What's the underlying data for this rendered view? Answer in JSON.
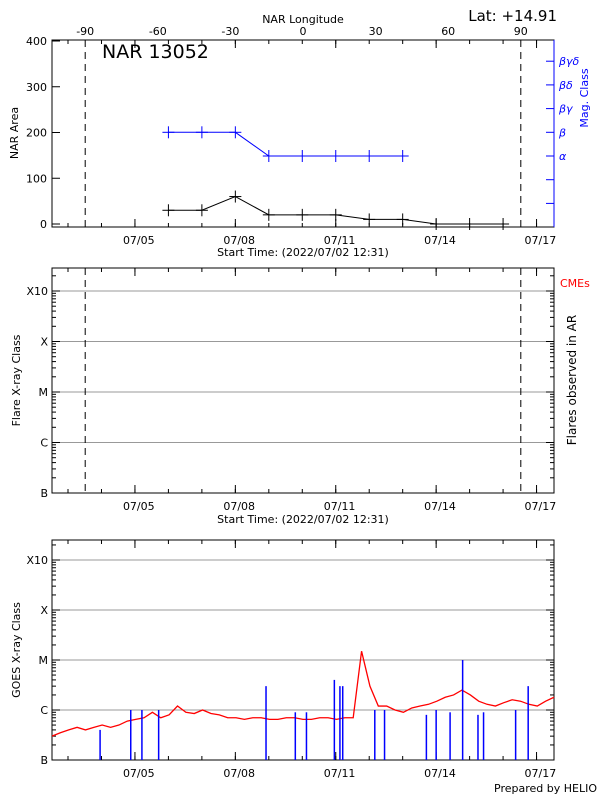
{
  "chart_data": [
    {
      "type": "line",
      "panel": "nar",
      "title": "NAR 13052",
      "lat_label": "Lat: +14.91",
      "top_axis_label": "NAR Longitude",
      "top_ticks": [
        -90,
        -60,
        -30,
        0,
        30,
        60,
        90
      ],
      "ylabel": "NAR Area",
      "ylim": [
        0,
        400
      ],
      "yticks": [
        0,
        100,
        200,
        300,
        400
      ],
      "right_label": "Mag. Class",
      "right_ticks": [
        "α",
        "β",
        "βγ",
        "βδ",
        "βγδ"
      ],
      "xlabel": "Start Time: (2022/07/02 12:31)",
      "xticks": [
        "07/05",
        "07/08",
        "07/11",
        "07/14",
        "07/17"
      ],
      "x_range": [
        "2022-07-02T12:31",
        "2022-07-17T12:31"
      ],
      "limb_longitudes": [
        -90,
        90
      ],
      "series": [
        {
          "color": "#000000",
          "x": [
            "2022-07-06T00:00",
            "2022-07-07T00:00",
            "2022-07-08T00:00",
            "2022-07-09T00:00",
            "2022-07-10T00:00",
            "2022-07-11T00:00",
            "2022-07-12T00:00",
            "2022-07-13T00:00",
            "2022-07-14T00:00",
            "2022-07-15T00:00",
            "2022-07-16T00:00"
          ],
          "values": [
            30,
            30,
            60,
            20,
            20,
            20,
            10,
            10,
            0,
            0,
            0
          ]
        },
        {
          "color": "#0000ff",
          "x": [
            "2022-07-06T00:00",
            "2022-07-07T00:00",
            "2022-07-08T00:00",
            "2022-07-09T00:00",
            "2022-07-10T00:00",
            "2022-07-11T00:00",
            "2022-07-12T00:00",
            "2022-07-13T00:00"
          ],
          "values": [
            "β",
            "β",
            "β",
            "α",
            "α",
            "α",
            "α",
            "α"
          ]
        }
      ]
    },
    {
      "type": "scatter",
      "panel": "flares",
      "ylabel": "Flare X-ray Class",
      "yticks": [
        "B",
        "C",
        "M",
        "X",
        "X10"
      ],
      "right_label": "Flares observed in AR",
      "cme_label": "CMEs",
      "cme_color": "#ff0000",
      "xlabel": "Start Time: (2022/07/02 12:31)",
      "xticks": [
        "07/05",
        "07/08",
        "07/11",
        "07/14",
        "07/17"
      ],
      "grid": true,
      "series": []
    },
    {
      "type": "line",
      "panel": "goes",
      "ylabel": "GOES X-ray Class",
      "yticks": [
        "B",
        "C",
        "M",
        "X",
        "X10"
      ],
      "xticks": [
        "07/05",
        "07/08",
        "07/11",
        "07/14",
        "07/17"
      ],
      "grid": true,
      "footer": "Prepared by HELIO",
      "series": [
        {
          "color": "#ff0000",
          "start": "2022-07-02T12:31",
          "step_hours": 6,
          "values": [
            "B3",
            "B3.5",
            "B4",
            "B4.5",
            "B4",
            "B4.5",
            "B5",
            "B4.5",
            "B5",
            "B6",
            "B6.5",
            "B7",
            "B9",
            "B7",
            "B8",
            "C1.2",
            "B9",
            "B8.5",
            "C1",
            "B8.5",
            "B8",
            "B7",
            "B7",
            "B6.5",
            "B7",
            "B7",
            "B6.5",
            "B6.5",
            "B7",
            "B7",
            "B6.5",
            "B6.5",
            "B7",
            "B7",
            "B6.5",
            "B7",
            "B7",
            "M1.5",
            "C3",
            "C1.2",
            "C1.2",
            "C1",
            "B9",
            "C1.1",
            "C1.2",
            "C1.3",
            "C1.5",
            "C1.8",
            "C2",
            "C2.5",
            "C2",
            "C1.5",
            "C1.3",
            "C1.2",
            "C1.4",
            "C1.6",
            "C1.5",
            "C1.3",
            "C1.2",
            "C1.5",
            "C1.8",
            "C2",
            "C2.5",
            "C2.2",
            "C1.8",
            "C2",
            "C2.2",
            "C1.8",
            "C2",
            "C2.4",
            "C2.2",
            "C2.5",
            "C2",
            "C1.8",
            "C2",
            "C2.2",
            "C2",
            "C2.2",
            "C2.3",
            "C2",
            "C2.2",
            "C2.1",
            "C2",
            "C2.3",
            "C2.5",
            "C2.2",
            "C2.1",
            "C2.4",
            "C2",
            "C2.1",
            "C1.8",
            "C2.2",
            "C2",
            "C2.5",
            "C2.2",
            "C2.1",
            "C2.4",
            "C2.2",
            "C2",
            "C2.1",
            "C2.4",
            "C2.2",
            "C2.3",
            "C2",
            "C2.2",
            "C2.4",
            "C2.1",
            "C2",
            "C2.2",
            "C2.4",
            "C2.6",
            "C2.4",
            "C2.1",
            "C2.3",
            "C2",
            "C2.1",
            "C2.2",
            "C2.3",
            "C2.5",
            "C2.2",
            "C2.1"
          ]
        },
        {
          "color": "#0000ff",
          "type": "flare-events",
          "x": [
            "2022-07-03T23:00",
            "2022-07-04T21:00",
            "2022-07-05T05:00",
            "2022-07-05T17:00",
            "2022-07-08T22:00",
            "2022-07-09T19:00",
            "2022-07-10T03:00",
            "2022-07-10T23:00",
            "2022-07-11T03:00",
            "2022-07-11T05:00",
            "2022-07-12T04:00",
            "2022-07-12T11:00",
            "2022-07-13T17:00",
            "2022-07-14T00:00",
            "2022-07-14T10:00",
            "2022-07-14T19:00",
            "2022-07-15T06:00",
            "2022-07-15T10:00",
            "2022-07-16T09:00",
            "2022-07-16T18:00"
          ],
          "values": [
            "B4",
            "C1",
            "C1",
            "C1",
            "C3",
            "B9",
            "B9",
            "C4",
            "C3",
            "C3",
            "C1",
            "C1",
            "B8",
            "C1",
            "B9",
            "M1",
            "B8",
            "B9",
            "C1",
            "C3"
          ]
        }
      ]
    }
  ]
}
